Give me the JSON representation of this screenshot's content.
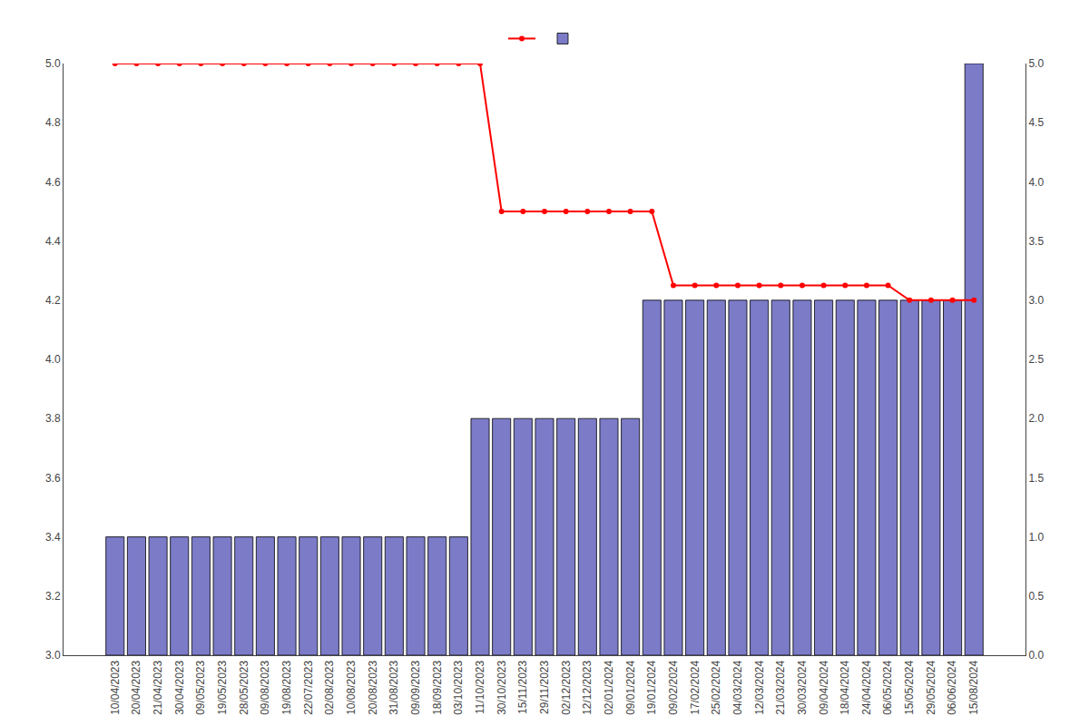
{
  "chart_data": {
    "type": "bar",
    "categories": [
      "10/04/2023",
      "20/04/2023",
      "21/04/2023",
      "30/04/2023",
      "09/05/2023",
      "19/05/2023",
      "28/05/2023",
      "09/08/2023",
      "19/08/2023",
      "22/07/2023",
      "02/08/2023",
      "10/08/2023",
      "20/08/2023",
      "31/08/2023",
      "09/09/2023",
      "18/09/2023",
      "03/10/2023",
      "11/10/2023",
      "30/10/2023",
      "15/11/2023",
      "29/11/2023",
      "02/12/2023",
      "12/12/2023",
      "02/01/2024",
      "09/01/2024",
      "19/01/2024",
      "09/02/2024",
      "17/02/2024",
      "25/02/2024",
      "04/03/2024",
      "12/03/2024",
      "21/03/2024",
      "30/03/2024",
      "09/04/2024",
      "18/04/2024",
      "24/04/2024",
      "06/05/2024",
      "15/05/2024",
      "29/05/2024",
      "06/06/2024",
      "15/08/2024"
    ],
    "series": [
      {
        "type": "line",
        "color": "#ff0000",
        "marker": "circle",
        "values": [
          5.0,
          5.0,
          5.0,
          5.0,
          5.0,
          5.0,
          5.0,
          5.0,
          5.0,
          5.0,
          5.0,
          5.0,
          5.0,
          5.0,
          5.0,
          5.0,
          5.0,
          5.0,
          4.5,
          4.5,
          4.5,
          4.5,
          4.5,
          4.5,
          4.5,
          4.5,
          4.25,
          4.25,
          4.25,
          4.25,
          4.25,
          4.25,
          4.25,
          4.25,
          4.25,
          4.25,
          4.25,
          4.2,
          4.2,
          4.2,
          4.2
        ]
      },
      {
        "type": "bar",
        "color": "#7b7bc8",
        "axis": "y2",
        "values": [
          1,
          1,
          1,
          1,
          1,
          1,
          1,
          1,
          1,
          1,
          1,
          1,
          1,
          1,
          1,
          1,
          1,
          2,
          2,
          2,
          2,
          2,
          2,
          2,
          2,
          3,
          3,
          3,
          3,
          3,
          3,
          3,
          3,
          3,
          3,
          3,
          3,
          3,
          3,
          3,
          5
        ]
      }
    ],
    "ylim": [
      3.0,
      5.0
    ],
    "yticks": [
      {
        "value": 3.0,
        "label": "3.0"
      },
      3.2,
      3.4,
      3.6,
      3.8,
      {
        "value": 4.0,
        "label": "4.0"
      },
      4.2,
      4.4,
      4.6,
      4.8,
      {
        "value": 5.0,
        "label": "5.0"
      }
    ],
    "y2lim": [
      0,
      5
    ],
    "y2ticks": [
      {
        "value": 0,
        "label": "0.0"
      },
      0.5,
      {
        "value": 1.0,
        "label": "1.0"
      },
      1.5,
      {
        "value": 2.0,
        "label": "2.0"
      },
      2.5,
      {
        "value": 3.0,
        "label": "3.0"
      },
      3.5,
      {
        "value": 4.0,
        "label": "4.0"
      },
      4.5,
      {
        "value": 5.0,
        "label": "5.0"
      }
    ],
    "grid": false,
    "legend": "top"
  }
}
